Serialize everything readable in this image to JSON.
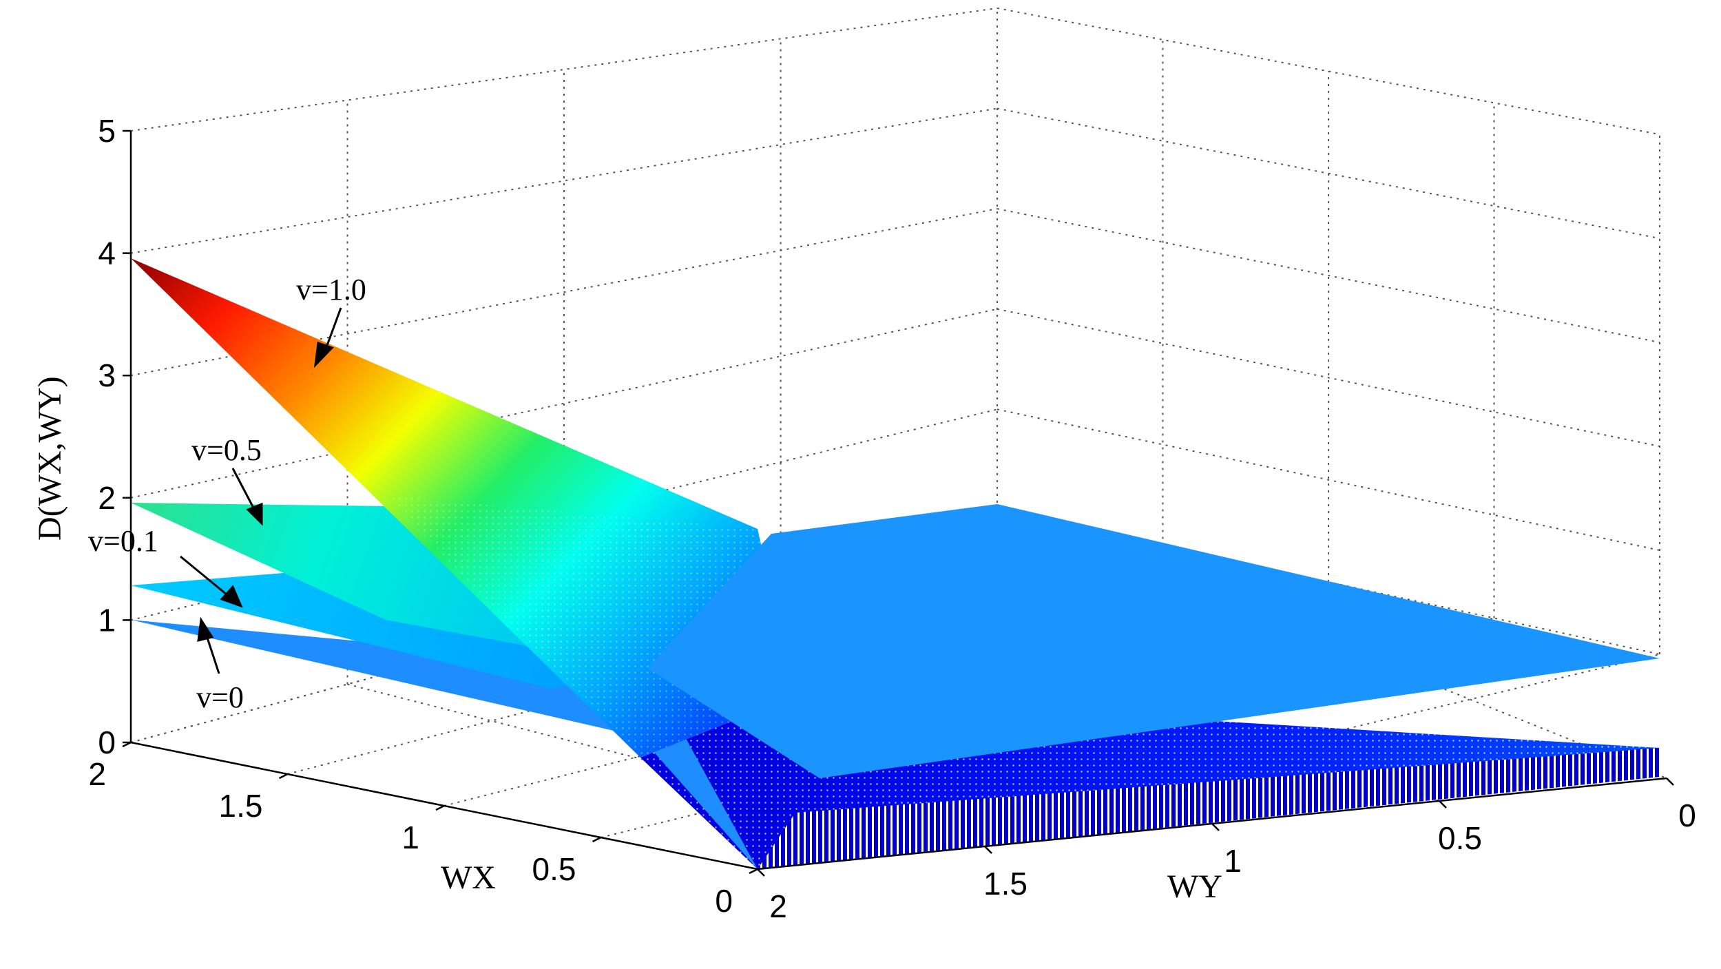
{
  "chart_data": {
    "type": "surface",
    "title": "",
    "xlabel": "WX",
    "ylabel": "WY",
    "zlabel": "D(WX,WY)",
    "xlim": [
      0,
      2
    ],
    "ylim": [
      0,
      2
    ],
    "zlim": [
      0,
      5
    ],
    "x_ticks": [
      "0",
      "0.5",
      "1",
      "1.5",
      "2"
    ],
    "y_ticks": [
      "0",
      "0.5",
      "1",
      "1.5",
      "2"
    ],
    "z_ticks": [
      "0",
      "1",
      "2",
      "3",
      "4",
      "5"
    ],
    "grid": true,
    "colormap": "jet",
    "series": [
      {
        "name": "v=1.0",
        "value_at_WX2_WY0": 4.0,
        "value_at_WX0_WY2": 0.0,
        "plateau": 1.0
      },
      {
        "name": "v=0.5",
        "value_at_WX2_WY0": 2.0,
        "plateau": 1.0
      },
      {
        "name": "v=0.1",
        "value_at_WX2_WY0": 1.3,
        "plateau": 1.0
      },
      {
        "name": "v=0",
        "value_at_WX2_WY0": 1.0,
        "plateau": 1.0
      }
    ],
    "annotations": [
      "v=1.0",
      "v=0.5",
      "v=0.1",
      "v=0"
    ]
  }
}
